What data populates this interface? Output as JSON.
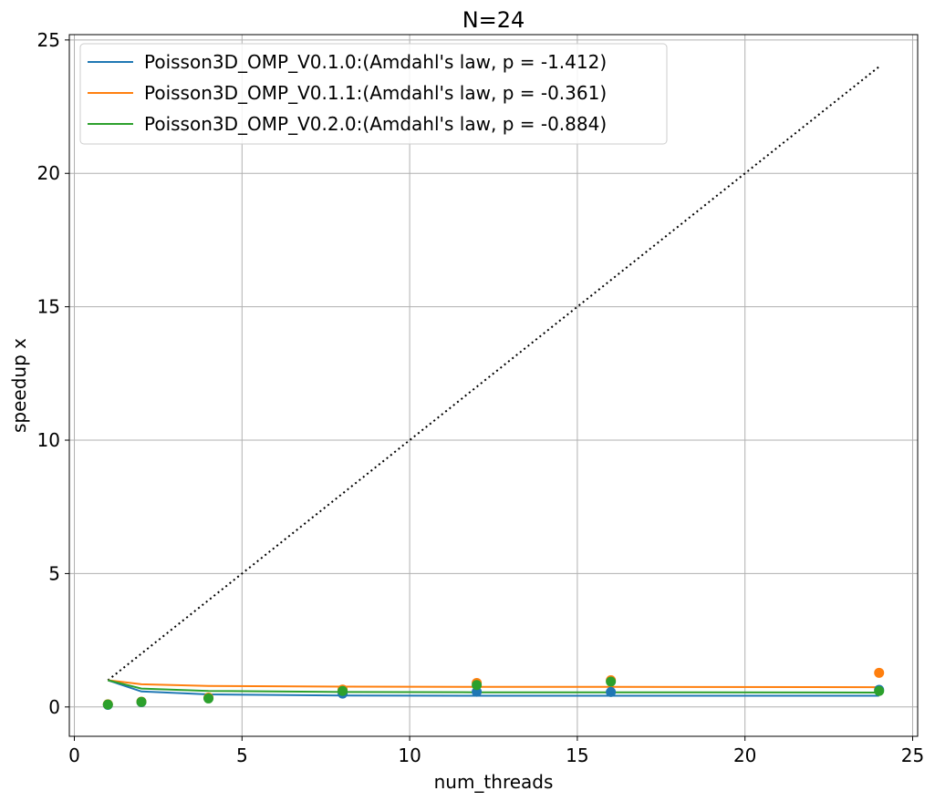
{
  "chart_data": {
    "type": "line",
    "title": "N=24",
    "xlabel": "num_threads",
    "ylabel": "speedup x",
    "xlim": [
      -0.15,
      25.15
    ],
    "ylim": [
      -1.1,
      25.2
    ],
    "xticks": [
      0,
      5,
      10,
      15,
      20,
      25
    ],
    "yticks": [
      0,
      5,
      10,
      15,
      20,
      25
    ],
    "grid": true,
    "legend_position": "top-left",
    "ideal_line": {
      "x": [
        1,
        24
      ],
      "y": [
        1,
        24
      ],
      "color": "#000000",
      "style": "dotted"
    },
    "series": [
      {
        "name": "Poisson3D_OMP_V0.1.0:(Amdahl's law, p = -1.412)",
        "color": "#1f77b4",
        "fit": {
          "x": [
            1,
            2,
            4,
            8,
            12,
            16,
            24
          ],
          "y": [
            1.0,
            0.58,
            0.47,
            0.43,
            0.42,
            0.42,
            0.42
          ]
        },
        "points": {
          "x": [
            1,
            2,
            4,
            8,
            12,
            16,
            24
          ],
          "y": [
            0.08,
            0.18,
            0.33,
            0.5,
            0.57,
            0.56,
            0.64
          ]
        }
      },
      {
        "name": "Poisson3D_OMP_V0.1.1:(Amdahl's law, p = -0.361)",
        "color": "#ff7f0e",
        "fit": {
          "x": [
            1,
            2,
            4,
            8,
            12,
            16,
            24
          ],
          "y": [
            1.0,
            0.85,
            0.79,
            0.76,
            0.75,
            0.75,
            0.74
          ]
        },
        "points": {
          "x": [
            1,
            2,
            4,
            8,
            12,
            16,
            24
          ],
          "y": [
            0.1,
            0.2,
            0.35,
            0.65,
            0.9,
            1.0,
            1.28
          ]
        }
      },
      {
        "name": "Poisson3D_OMP_V0.2.0:(Amdahl's law, p = -0.884)",
        "color": "#2ca02c",
        "fit": {
          "x": [
            1,
            2,
            4,
            8,
            12,
            16,
            24
          ],
          "y": [
            1.0,
            0.69,
            0.6,
            0.56,
            0.55,
            0.55,
            0.54
          ]
        },
        "points": {
          "x": [
            1,
            2,
            4,
            8,
            12,
            16,
            24
          ],
          "y": [
            0.09,
            0.19,
            0.32,
            0.6,
            0.82,
            0.95,
            0.6
          ]
        }
      }
    ]
  }
}
